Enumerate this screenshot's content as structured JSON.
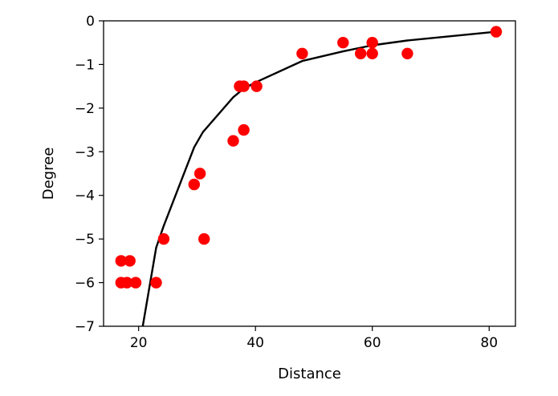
{
  "chart_data": {
    "type": "scatter",
    "title": "",
    "xlabel": "Distance",
    "ylabel": "Degree",
    "xlim": [
      14,
      84.5
    ],
    "ylim": [
      -7,
      0
    ],
    "xticks": [
      20,
      40,
      60,
      80
    ],
    "yticks": [
      0,
      -1,
      -2,
      -3,
      -4,
      -5,
      -6,
      -7
    ],
    "grid": false,
    "scatter_color": "#ff0000",
    "line_color": "#000000",
    "points": [
      {
        "x": 17,
        "y": -5.5
      },
      {
        "x": 18.5,
        "y": -5.5
      },
      {
        "x": 17,
        "y": -6
      },
      {
        "x": 18,
        "y": -6
      },
      {
        "x": 19.5,
        "y": -6
      },
      {
        "x": 23,
        "y": -6
      },
      {
        "x": 24.3,
        "y": -5
      },
      {
        "x": 29.5,
        "y": -3.75
      },
      {
        "x": 30.5,
        "y": -3.5
      },
      {
        "x": 31.2,
        "y": -5
      },
      {
        "x": 36.2,
        "y": -2.75
      },
      {
        "x": 37.3,
        "y": -1.5
      },
      {
        "x": 38,
        "y": -1.5
      },
      {
        "x": 38,
        "y": -2.5
      },
      {
        "x": 40.2,
        "y": -1.5
      },
      {
        "x": 48,
        "y": -0.75
      },
      {
        "x": 55,
        "y": -0.5
      },
      {
        "x": 58,
        "y": -0.75
      },
      {
        "x": 60,
        "y": -0.5
      },
      {
        "x": 60,
        "y": -0.75
      },
      {
        "x": 66,
        "y": -0.75
      },
      {
        "x": 81.2,
        "y": -0.25
      }
    ],
    "curve": [
      {
        "x": 20.7,
        "y": -7
      },
      {
        "x": 23,
        "y": -5.2
      },
      {
        "x": 24.3,
        "y": -4.7
      },
      {
        "x": 29.5,
        "y": -2.9
      },
      {
        "x": 31,
        "y": -2.55
      },
      {
        "x": 36.2,
        "y": -1.75
      },
      {
        "x": 38,
        "y": -1.55
      },
      {
        "x": 40.2,
        "y": -1.4
      },
      {
        "x": 48,
        "y": -0.92
      },
      {
        "x": 55,
        "y": -0.7
      },
      {
        "x": 60,
        "y": -0.56
      },
      {
        "x": 66,
        "y": -0.45
      },
      {
        "x": 81.2,
        "y": -0.25
      }
    ]
  }
}
